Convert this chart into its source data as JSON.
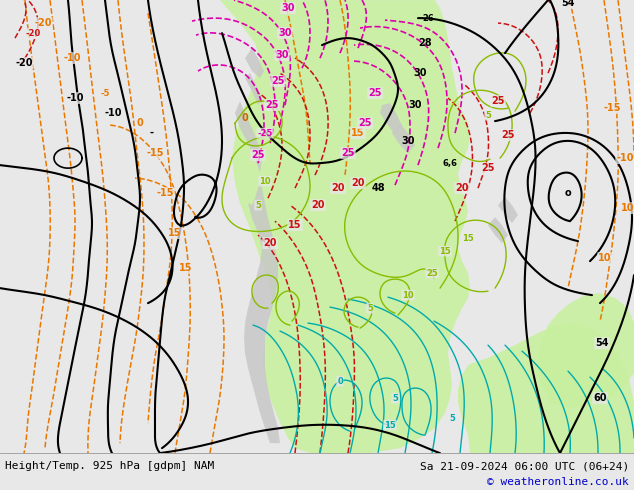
{
  "title_left": "Height/Temp. 925 hPa [gdpm] NAM",
  "title_right": "Sa 21-09-2024 06:00 UTC (06+24)",
  "copyright": "© weatheronline.co.uk",
  "bg_color": "#e8e8e8",
  "green_color": "#c8f0a0",
  "gray_color": "#c8c8c8",
  "copyright_color": "#0000cc",
  "bottom_bg": "#ffffff"
}
